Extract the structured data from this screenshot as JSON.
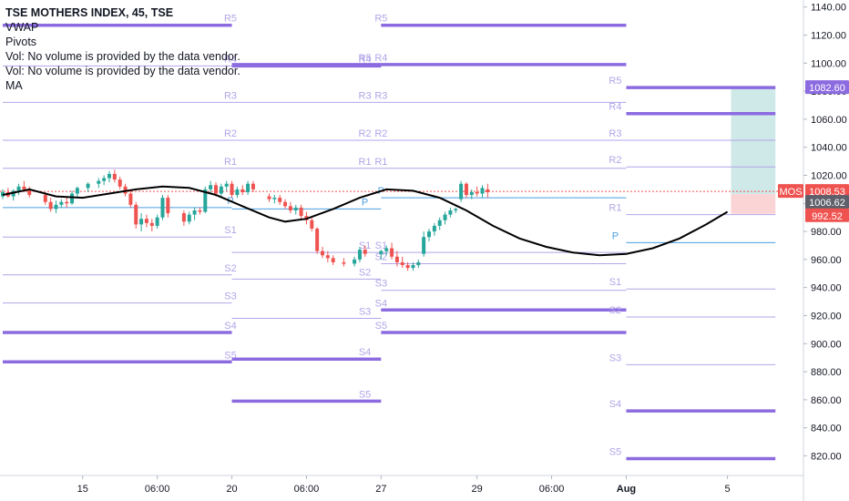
{
  "legend": {
    "title": "TSE MOTHERS INDEX, 45, TSE",
    "lines": [
      "VWAP",
      "Pivots",
      "Vol: No volume is provided by the data vendor.",
      "Vol: No volume is provided by the data vendor.",
      "MA"
    ]
  },
  "colors": {
    "up": "#26a69a",
    "down": "#ef5350",
    "pivot_light": "#b2a4e8",
    "pivot_heavy": "#8c6be0",
    "pivot_p": "#4a9fe0",
    "ma": "#000000",
    "profit_zone": "#cfe9e8",
    "loss_zone": "#fbd4d6"
  },
  "chart_data": {
    "type": "candlestick",
    "symbol": "TSE MOTHERS INDEX",
    "interval": "45",
    "exchange": "TSE",
    "y_axis": {
      "position": "right",
      "ylim": [
        806,
        1145
      ],
      "ticks": [
        820,
        840,
        860,
        880,
        900,
        920,
        940,
        960,
        980,
        1000,
        1020,
        1040,
        1060,
        1080,
        1100,
        1120,
        1140
      ],
      "tick_labels": [
        "820.00",
        "840.00",
        "860.00",
        "880.00",
        "900.00",
        "920.00",
        "940.00",
        "960.00",
        "980.00",
        "1000.00",
        "1020.00",
        "1040.00",
        "1060.00",
        "1080.00",
        "1100.00",
        "1120.00",
        "1140.00"
      ]
    },
    "x_axis": {
      "labels": [
        {
          "label": "15",
          "bar": 15
        },
        {
          "label": "06:00",
          "bar": 29
        },
        {
          "label": "20",
          "bar": 43
        },
        {
          "label": "06:00",
          "bar": 57
        },
        {
          "label": "27",
          "bar": 71
        },
        {
          "label": "29",
          "bar": 89
        },
        {
          "label": "06:00",
          "bar": 103
        },
        {
          "label": "Aug",
          "bar": 117
        },
        {
          "label": "5",
          "bar": 136
        }
      ]
    },
    "price_labels": [
      {
        "text": "1082.60",
        "value": 1082.6,
        "color": "#8c6be0"
      },
      {
        "text": "MOS",
        "value": 1008.53,
        "color": "#ef5350"
      },
      {
        "text": "1008.53",
        "value": 1008.53,
        "color": "#ef5350"
      },
      {
        "text": "1006.62",
        "value": 1006.62,
        "color": "#5d606b"
      },
      {
        "text": "992.52",
        "value": 992.52,
        "color": "#ef5350"
      }
    ],
    "current_price": 1008.53,
    "pivot_periods": [
      {
        "start": 0,
        "end": 43,
        "levels": [
          {
            "name": "R5",
            "value": 1127,
            "heavy": true
          },
          {
            "name": "R4",
            "value": 1098,
            "heavy": false
          },
          {
            "name": "R3",
            "value": 1072,
            "heavy": false
          },
          {
            "name": "R2",
            "value": 1045,
            "heavy": false
          },
          {
            "name": "R1",
            "value": 1025,
            "heavy": false
          },
          {
            "name": "P",
            "value": 997,
            "heavy": false,
            "pivot": true
          },
          {
            "name": "S1",
            "value": 976,
            "heavy": false
          },
          {
            "name": "S2",
            "value": 949,
            "heavy": false
          },
          {
            "name": "S3",
            "value": 929,
            "heavy": false
          },
          {
            "name": "S4",
            "value": 908,
            "heavy": true
          },
          {
            "name": "S5",
            "value": 887,
            "heavy": true
          }
        ]
      },
      {
        "start": 43,
        "end": 71,
        "levels": [
          {
            "name": "R5",
            "value": 1099,
            "heavy": true
          },
          {
            "name": "R4",
            "value": 1098,
            "heavy": true
          },
          {
            "name": "R3",
            "value": 1072,
            "heavy": false
          },
          {
            "name": "R2",
            "value": 1045,
            "heavy": false
          },
          {
            "name": "R1",
            "value": 1025,
            "heavy": false
          },
          {
            "name": "P",
            "value": 996,
            "heavy": false,
            "pivot": true
          },
          {
            "name": "S1",
            "value": 965,
            "heavy": false
          },
          {
            "name": "S2",
            "value": 946,
            "heavy": false
          },
          {
            "name": "S3",
            "value": 918,
            "heavy": false
          },
          {
            "name": "S4",
            "value": 889,
            "heavy": true
          },
          {
            "name": "S5",
            "value": 859,
            "heavy": true
          }
        ]
      },
      {
        "start": 71,
        "end": 117,
        "levels": [
          {
            "name": "R5",
            "value": 1127,
            "heavy": true
          },
          {
            "name": "R4",
            "value": 1099,
            "heavy": true
          },
          {
            "name": "R3",
            "value": 1072,
            "heavy": false
          },
          {
            "name": "R2",
            "value": 1045,
            "heavy": false
          },
          {
            "name": "R1",
            "value": 1025,
            "heavy": false
          },
          {
            "name": "P",
            "value": 1004,
            "heavy": false,
            "pivot": true
          },
          {
            "name": "S1",
            "value": 965,
            "heavy": false
          },
          {
            "name": "S2",
            "value": 957,
            "heavy": false
          },
          {
            "name": "S3",
            "value": 938,
            "heavy": false
          },
          {
            "name": "S4",
            "value": 924,
            "heavy": true
          },
          {
            "name": "S5",
            "value": 908,
            "heavy": true
          }
        ]
      },
      {
        "start": 117,
        "end": 145,
        "levels": [
          {
            "name": "R5",
            "value": 1082.6,
            "heavy": true
          },
          {
            "name": "R4",
            "value": 1064,
            "heavy": true
          },
          {
            "name": "R3",
            "value": 1045,
            "heavy": false
          },
          {
            "name": "R2",
            "value": 1026,
            "heavy": false
          },
          {
            "name": "R1",
            "value": 992,
            "heavy": false
          },
          {
            "name": "P",
            "value": 972,
            "heavy": false,
            "pivot": true
          },
          {
            "name": "S1",
            "value": 939,
            "heavy": false
          },
          {
            "name": "S2",
            "value": 919,
            "heavy": false
          },
          {
            "name": "S3",
            "value": 885,
            "heavy": false
          },
          {
            "name": "S4",
            "value": 852,
            "heavy": true
          },
          {
            "name": "S5",
            "value": 818,
            "heavy": true
          }
        ]
      }
    ],
    "position_box": {
      "start_bar": 137,
      "end_bar": 145,
      "entry": 1006.62,
      "target": 1082.6,
      "stop": 992.52
    },
    "ma": [
      {
        "bar": 0,
        "value": 1006
      },
      {
        "bar": 5,
        "value": 1010
      },
      {
        "bar": 10,
        "value": 1005
      },
      {
        "bar": 15,
        "value": 1004
      },
      {
        "bar": 20,
        "value": 1007
      },
      {
        "bar": 25,
        "value": 1010
      },
      {
        "bar": 30,
        "value": 1012
      },
      {
        "bar": 35,
        "value": 1011
      },
      {
        "bar": 40,
        "value": 1006
      },
      {
        "bar": 45,
        "value": 998
      },
      {
        "bar": 50,
        "value": 990
      },
      {
        "bar": 53,
        "value": 987
      },
      {
        "bar": 57,
        "value": 989
      },
      {
        "bar": 62,
        "value": 996
      },
      {
        "bar": 67,
        "value": 1004
      },
      {
        "bar": 72,
        "value": 1010
      },
      {
        "bar": 77,
        "value": 1009
      },
      {
        "bar": 82,
        "value": 1004
      },
      {
        "bar": 87,
        "value": 995
      },
      {
        "bar": 92,
        "value": 984
      },
      {
        "bar": 97,
        "value": 975
      },
      {
        "bar": 102,
        "value": 969
      },
      {
        "bar": 107,
        "value": 965
      },
      {
        "bar": 112,
        "value": 963
      },
      {
        "bar": 117,
        "value": 964
      },
      {
        "bar": 122,
        "value": 968
      },
      {
        "bar": 127,
        "value": 975
      },
      {
        "bar": 132,
        "value": 985
      },
      {
        "bar": 136,
        "value": 994
      }
    ],
    "candles": [
      {
        "o": 1005,
        "h": 1010,
        "l": 1003,
        "c": 1008
      },
      {
        "o": 1008,
        "h": 1011,
        "l": 1004,
        "c": 1005
      },
      {
        "o": 1005,
        "h": 1010,
        "l": 1002,
        "c": 1009
      },
      {
        "o": 1009,
        "h": 1014,
        "l": 1006,
        "c": 1012
      },
      {
        "o": 1012,
        "h": 1016,
        "l": 1008,
        "c": 1010
      },
      {
        "o": 1010,
        "h": 1012,
        "l": 1004,
        "c": 1006
      },
      {
        "o": 1006,
        "h": 1008,
        "l": 999,
        "c": 1001
      },
      {
        "o": 1001,
        "h": 1004,
        "l": 994,
        "c": 996
      },
      {
        "o": 996,
        "h": 1002,
        "l": 993,
        "c": 999
      },
      {
        "o": 999,
        "h": 1003,
        "l": 997,
        "c": 1001
      },
      {
        "o": 1001,
        "h": 1004,
        "l": 997,
        "c": 1000
      },
      {
        "o": 1000,
        "h": 1009,
        "l": 999,
        "c": 1007
      },
      {
        "o": 1007,
        "h": 1012,
        "l": 1004,
        "c": 1011
      },
      {
        "o": 1011,
        "h": 1015,
        "l": 1008,
        "c": 1014
      },
      {
        "o": 1014,
        "h": 1018,
        "l": 1011,
        "c": 1016
      },
      {
        "o": 1016,
        "h": 1020,
        "l": 1013,
        "c": 1018
      },
      {
        "o": 1018,
        "h": 1023,
        "l": 1015,
        "c": 1021
      },
      {
        "o": 1021,
        "h": 1024,
        "l": 1015,
        "c": 1017
      },
      {
        "o": 1017,
        "h": 1019,
        "l": 1010,
        "c": 1012
      },
      {
        "o": 1012,
        "h": 1014,
        "l": 1005,
        "c": 1007
      },
      {
        "o": 1007,
        "h": 1009,
        "l": 997,
        "c": 999
      },
      {
        "o": 999,
        "h": 1001,
        "l": 982,
        "c": 985
      },
      {
        "o": 985,
        "h": 993,
        "l": 980,
        "c": 989
      },
      {
        "o": 989,
        "h": 992,
        "l": 983,
        "c": 986
      },
      {
        "o": 986,
        "h": 989,
        "l": 980,
        "c": 984
      },
      {
        "o": 984,
        "h": 992,
        "l": 982,
        "c": 990
      },
      {
        "o": 990,
        "h": 1006,
        "l": 988,
        "c": 1004
      },
      {
        "o": 1004,
        "h": 1006,
        "l": 990,
        "c": 993
      },
      {
        "o": 993,
        "h": 995,
        "l": 984,
        "c": 987
      },
      {
        "o": 987,
        "h": 994,
        "l": 985,
        "c": 992
      },
      {
        "o": 992,
        "h": 997,
        "l": 988,
        "c": 995
      },
      {
        "o": 995,
        "h": 997,
        "l": 992,
        "c": 994
      },
      {
        "o": 994,
        "h": 1012,
        "l": 993,
        "c": 1010
      },
      {
        "o": 1010,
        "h": 1016,
        "l": 1007,
        "c": 1013
      },
      {
        "o": 1013,
        "h": 1015,
        "l": 1005,
        "c": 1007
      },
      {
        "o": 1007,
        "h": 1014,
        "l": 1005,
        "c": 1012
      },
      {
        "o": 1012,
        "h": 1016,
        "l": 1009,
        "c": 1014
      },
      {
        "o": 1014,
        "h": 1016,
        "l": 1004,
        "c": 1006
      },
      {
        "o": 1006,
        "h": 1012,
        "l": 1004,
        "c": 1010
      },
      {
        "o": 1010,
        "h": 1013,
        "l": 1006,
        "c": 1008
      },
      {
        "o": 1008,
        "h": 1016,
        "l": 1006,
        "c": 1014
      },
      {
        "o": 1014,
        "h": 1016,
        "l": 1008,
        "c": 1010
      },
      {
        "o": 1005,
        "h": 1007,
        "l": 1001,
        "c": 1003
      },
      {
        "o": 1003,
        "h": 1006,
        "l": 1000,
        "c": 1004
      },
      {
        "o": 1004,
        "h": 1006,
        "l": 999,
        "c": 1001
      },
      {
        "o": 1001,
        "h": 1003,
        "l": 996,
        "c": 998
      },
      {
        "o": 998,
        "h": 1001,
        "l": 993,
        "c": 995
      },
      {
        "o": 995,
        "h": 999,
        "l": 992,
        "c": 997
      },
      {
        "o": 997,
        "h": 999,
        "l": 989,
        "c": 991
      },
      {
        "o": 991,
        "h": 994,
        "l": 985,
        "c": 988
      },
      {
        "o": 988,
        "h": 990,
        "l": 980,
        "c": 982
      },
      {
        "o": 982,
        "h": 983,
        "l": 964,
        "c": 966
      },
      {
        "o": 966,
        "h": 969,
        "l": 961,
        "c": 963
      },
      {
        "o": 963,
        "h": 966,
        "l": 958,
        "c": 961
      },
      {
        "o": 961,
        "h": 963,
        "l": 956,
        "c": 958
      },
      {
        "o": 958,
        "h": 961,
        "l": 955,
        "c": 957
      },
      {
        "o": 957,
        "h": 962,
        "l": 955,
        "c": 960
      },
      {
        "o": 960,
        "h": 969,
        "l": 958,
        "c": 967
      },
      {
        "o": 967,
        "h": 970,
        "l": 962,
        "c": 964
      },
      {
        "o": 964,
        "h": 967,
        "l": 960,
        "c": 966
      },
      {
        "o": 966,
        "h": 970,
        "l": 963,
        "c": 968
      },
      {
        "o": 968,
        "h": 972,
        "l": 960,
        "c": 962
      },
      {
        "o": 962,
        "h": 966,
        "l": 955,
        "c": 958
      },
      {
        "o": 958,
        "h": 962,
        "l": 954,
        "c": 956
      },
      {
        "o": 956,
        "h": 958,
        "l": 952,
        "c": 954
      },
      {
        "o": 954,
        "h": 958,
        "l": 952,
        "c": 956
      },
      {
        "o": 956,
        "h": 960,
        "l": 954,
        "c": 958
      },
      {
        "o": 964,
        "h": 980,
        "l": 962,
        "c": 976
      },
      {
        "o": 976,
        "h": 982,
        "l": 973,
        "c": 980
      },
      {
        "o": 980,
        "h": 986,
        "l": 977,
        "c": 984
      },
      {
        "o": 984,
        "h": 990,
        "l": 981,
        "c": 988
      },
      {
        "o": 988,
        "h": 994,
        "l": 985,
        "c": 992
      },
      {
        "o": 992,
        "h": 997,
        "l": 990,
        "c": 995
      },
      {
        "o": 995,
        "h": 997,
        "l": 993,
        "c": 996
      },
      {
        "o": 1003,
        "h": 1016,
        "l": 1001,
        "c": 1014
      },
      {
        "o": 1014,
        "h": 1015,
        "l": 1004,
        "c": 1006
      },
      {
        "o": 1006,
        "h": 1010,
        "l": 1003,
        "c": 1008
      },
      {
        "o": 1008,
        "h": 1012,
        "l": 1005,
        "c": 1007
      },
      {
        "o": 1007,
        "h": 1013,
        "l": 1004,
        "c": 1011
      },
      {
        "o": 1010,
        "h": 1014,
        "l": 1004,
        "c": 1008
      }
    ],
    "candle_bars": [
      0,
      1,
      2,
      3,
      4,
      5,
      8,
      9,
      10,
      11,
      12,
      13,
      14,
      16,
      18,
      19,
      20,
      21,
      22,
      23,
      24,
      25,
      26,
      27,
      28,
      29,
      30,
      31,
      34,
      35,
      36,
      37,
      38,
      39,
      40,
      41,
      42,
      43,
      44,
      45,
      46,
      47,
      50,
      51,
      52,
      53,
      54,
      55,
      56,
      57,
      58,
      59,
      60,
      61,
      62,
      64,
      66,
      67,
      68,
      71,
      72,
      73,
      74,
      75,
      76,
      77,
      78,
      79,
      80,
      81,
      82,
      83,
      84,
      85,
      86,
      87,
      88,
      89,
      90,
      91
    ]
  }
}
